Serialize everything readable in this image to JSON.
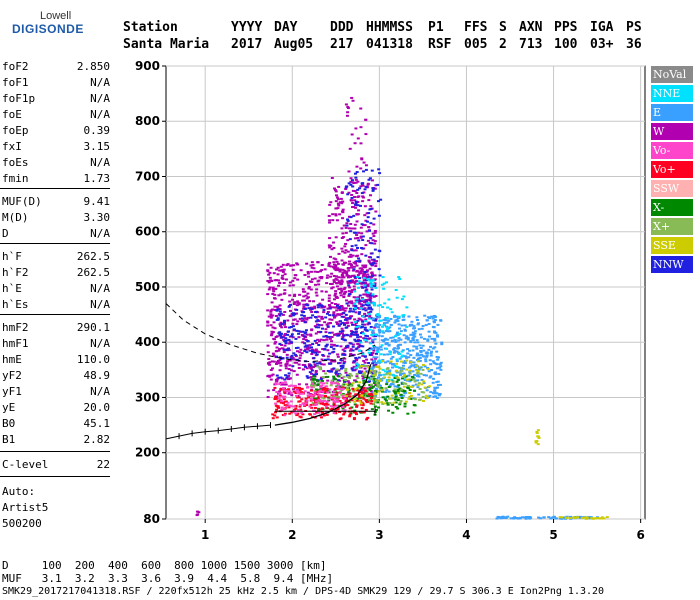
{
  "logo": {
    "line1": "Lowell",
    "line2": "DIGISONDE"
  },
  "header": {
    "labels": [
      "Station",
      "YYYY",
      "DAY",
      "DDD",
      "HHMMSS",
      "P1",
      "FFS",
      "S",
      "AXN",
      "PPS",
      "IGA",
      "PS"
    ],
    "values": [
      "Santa Maria",
      "2017",
      "Aug05",
      "217",
      "041318",
      "RSF",
      "005",
      "2",
      "713",
      "100",
      "03+",
      "36"
    ]
  },
  "params": [
    {
      "name": "foF2",
      "value": "2.850"
    },
    {
      "name": "foF1",
      "value": "N/A"
    },
    {
      "name": "foF1p",
      "value": "N/A"
    },
    {
      "name": "foE",
      "value": "N/A"
    },
    {
      "name": "foEp",
      "value": "0.39"
    },
    {
      "name": "fxI",
      "value": "3.15"
    },
    {
      "name": "foEs",
      "value": "N/A"
    },
    {
      "name": "fmin",
      "value": "1.73"
    },
    {
      "name": "MUF(D)",
      "value": "9.41"
    },
    {
      "name": "M(D)",
      "value": "3.30"
    },
    {
      "name": "D",
      "value": "N/A"
    },
    {
      "name": "h`F",
      "value": "262.5"
    },
    {
      "name": "h`F2",
      "value": "262.5"
    },
    {
      "name": "h`E",
      "value": "N/A"
    },
    {
      "name": "h`Es",
      "value": "N/A"
    },
    {
      "name": "hmF2",
      "value": "290.1"
    },
    {
      "name": "hmF1",
      "value": "N/A"
    },
    {
      "name": "hmE",
      "value": "110.0"
    },
    {
      "name": "yF2",
      "value": "48.9"
    },
    {
      "name": "yF1",
      "value": "N/A"
    },
    {
      "name": "yE",
      "value": "20.0"
    },
    {
      "name": "B0",
      "value": "45.1"
    },
    {
      "name": "B1",
      "value": "2.82"
    },
    {
      "name": "C-level",
      "value": "22"
    }
  ],
  "auto": {
    "line1": "Auto:",
    "line2": "Artist5",
    "line3": "500200"
  },
  "footer": {
    "d_row": "D     100  200  400  600  800 1000 1500 3000 [km]",
    "muf_row": "MUF   3.1  3.2  3.3  3.6  3.9  4.4  5.8  9.4 [MHz]",
    "info": "SMK29_2017217041318.RSF / 220fx512h 25 kHz 2.5 km / DPS-4D SMK29 129 / 29.7 S 306.3 E Ion2Png 1.3.20"
  },
  "chart_data": {
    "type": "scatter",
    "xlim": [
      0.55,
      6.05
    ],
    "ylim": [
      80,
      900
    ],
    "x_ticks": [
      1,
      2,
      3,
      4,
      5,
      6
    ],
    "y_ticks": [
      80,
      200,
      300,
      400,
      500,
      600,
      700,
      800,
      900
    ],
    "grid": true,
    "legend_position": "right",
    "legend": [
      {
        "name": "NoVal",
        "color": "#8a8a8a"
      },
      {
        "name": "NNE",
        "color": "#00e0ff"
      },
      {
        "name": "E",
        "color": "#3aa0ff"
      },
      {
        "name": "W",
        "color": "#b000b0"
      },
      {
        "name": "Vo-",
        "color": "#ff44cc"
      },
      {
        "name": "Vo+",
        "color": "#ff0022"
      },
      {
        "name": "SSW",
        "color": "#ffb0b0"
      },
      {
        "name": "X-",
        "color": "#008800"
      },
      {
        "name": "X+",
        "color": "#88bb55"
      },
      {
        "name": "SSE",
        "color": "#cccc00"
      },
      {
        "name": "NNW",
        "color": "#2020e0"
      }
    ],
    "echo_regions": [
      {
        "series": "W",
        "x": [
          1.7,
          2.95
        ],
        "y": [
          300,
          550
        ],
        "count": 900
      },
      {
        "series": "W",
        "x": [
          2.4,
          2.95
        ],
        "y": [
          500,
          700
        ],
        "count": 220
      },
      {
        "series": "NNW",
        "x": [
          1.8,
          2.95
        ],
        "y": [
          330,
          470
        ],
        "count": 300
      },
      {
        "series": "NNW",
        "x": [
          2.6,
          3.0
        ],
        "y": [
          450,
          720
        ],
        "count": 120
      },
      {
        "series": "E",
        "x": [
          2.9,
          3.7
        ],
        "y": [
          300,
          450
        ],
        "count": 420
      },
      {
        "series": "NNE",
        "x": [
          2.7,
          3.3
        ],
        "y": [
          330,
          520
        ],
        "count": 120
      },
      {
        "series": "X-",
        "x": [
          2.2,
          3.4
        ],
        "y": [
          270,
          340
        ],
        "count": 180
      },
      {
        "series": "X+",
        "x": [
          2.2,
          3.5
        ],
        "y": [
          290,
          360
        ],
        "count": 140
      },
      {
        "series": "Vo+",
        "x": [
          1.75,
          2.9
        ],
        "y": [
          262,
          320
        ],
        "count": 220
      },
      {
        "series": "Vo-",
        "x": [
          1.75,
          2.6
        ],
        "y": [
          268,
          330
        ],
        "count": 120
      },
      {
        "series": "SSE",
        "x": [
          2.6,
          3.6
        ],
        "y": [
          290,
          370
        ],
        "count": 70
      },
      {
        "series": "W",
        "x": [
          2.6,
          2.85
        ],
        "y": [
          700,
          850
        ],
        "count": 25
      },
      {
        "series": "E",
        "x": [
          4.3,
          5.5
        ],
        "y": [
          82,
          86
        ],
        "count": 70
      },
      {
        "series": "SSE",
        "x": [
          5.0,
          5.6
        ],
        "y": [
          82,
          86
        ],
        "count": 25
      },
      {
        "series": "SSE",
        "x": [
          4.78,
          4.82
        ],
        "y": [
          215,
          245
        ],
        "count": 10
      },
      {
        "series": "W",
        "x": [
          0.88,
          0.92
        ],
        "y": [
          88,
          96
        ],
        "count": 4
      }
    ],
    "profile_curve": {
      "x": [
        1.8,
        2.0,
        2.2,
        2.4,
        2.6,
        2.75,
        2.85,
        2.9
      ],
      "y": [
        250,
        255,
        262,
        272,
        288,
        305,
        330,
        360
      ]
    },
    "dashed_curve": {
      "x": [
        0.55,
        0.75,
        1.0,
        1.3,
        1.6,
        1.9,
        2.2,
        2.5,
        2.8,
        2.95
      ],
      "y": [
        470,
        440,
        415,
        395,
        380,
        370,
        365,
        368,
        380,
        395
      ]
    },
    "error_bar_curve": {
      "x": [
        0.55,
        0.7,
        0.85,
        1.0,
        1.15,
        1.3,
        1.45,
        1.6,
        1.75
      ],
      "y": [
        225,
        230,
        235,
        238,
        240,
        243,
        246,
        248,
        250
      ]
    },
    "height_bar": {
      "x": [
        1.8,
        2.95
      ],
      "y": 275
    }
  }
}
